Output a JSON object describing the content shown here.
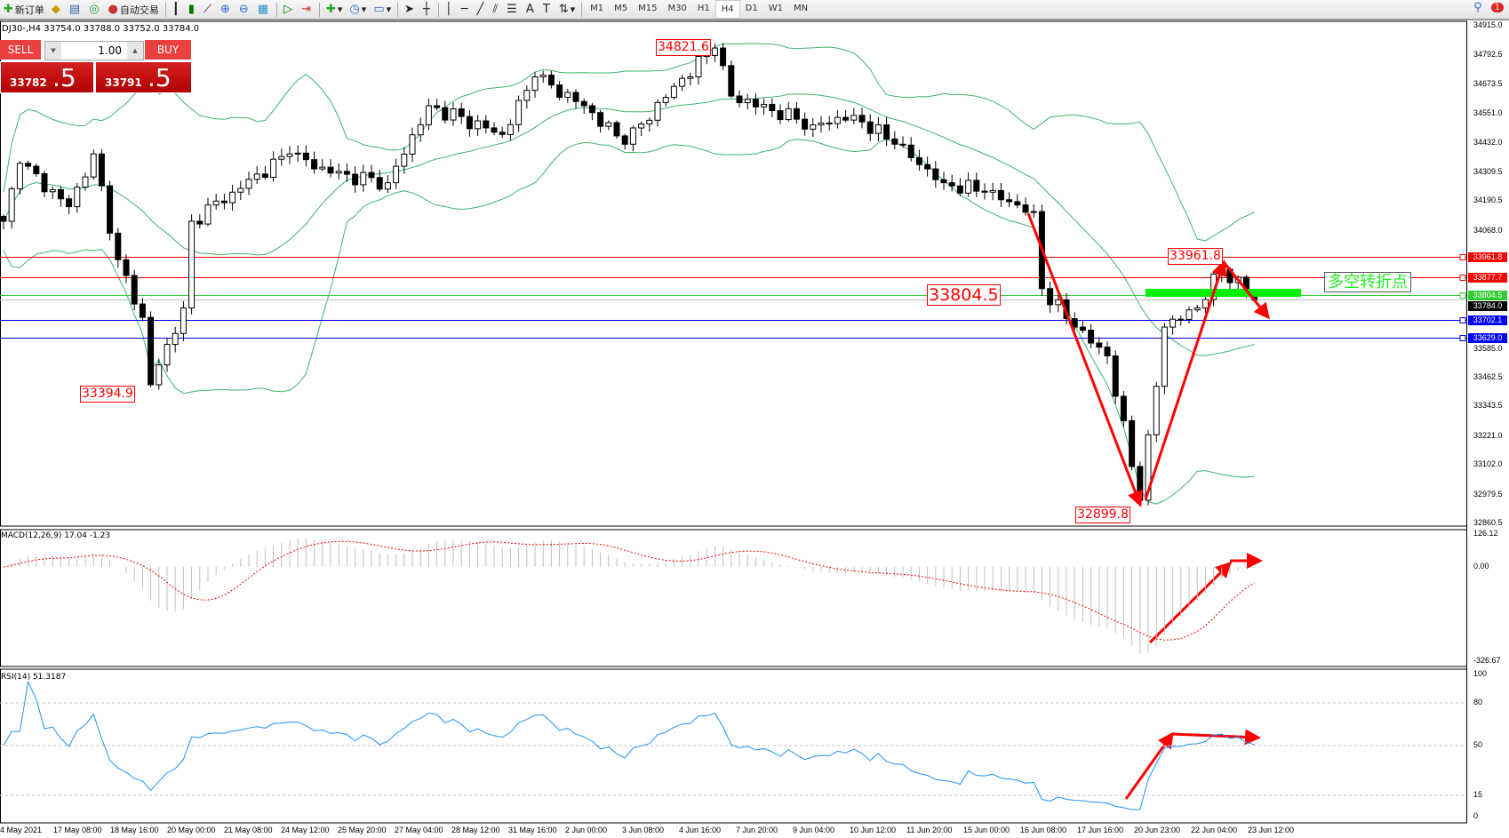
{
  "toolbar": {
    "items": [
      {
        "icon": "new-order-icon",
        "label": "新订单"
      },
      {
        "icon": "market-watch-icon",
        "label": ""
      },
      {
        "icon": "navigator-icon",
        "label": ""
      },
      {
        "icon": "signal-icon",
        "label": ""
      },
      {
        "icon": "auto-trading-icon",
        "label": "自动交易"
      }
    ],
    "timeframes": [
      "M1",
      "M5",
      "M15",
      "M30",
      "H1",
      "H4",
      "D1",
      "W1",
      "MN"
    ],
    "active_timeframe": "H4",
    "notification_count": "1"
  },
  "chart": {
    "title": "DJ30-,H4  33754.0 33788.0 33752.0 33784.0",
    "price_axis": [
      "34915.0",
      "34792.5",
      "34673.5",
      "34551.0",
      "34432.0",
      "34309.5",
      "34190.5",
      "34068.0",
      "33585.0",
      "33462.5",
      "33343.5",
      "33221.0",
      "33102.0",
      "32979.5",
      "32860.5"
    ],
    "price_range": [
      32860.5,
      34915.0
    ],
    "time_axis": [
      "4 May 2021",
      "17 May 08:00",
      "18 May 16:00",
      "20 May 00:00",
      "21 May 08:00",
      "24 May 12:00",
      "25 May 20:00",
      "27 May 04:00",
      "28 May 12:00",
      "31 May 16:00",
      "2 Jun 00:00",
      "3 Jun 08:00",
      "4 Jun 16:00",
      "7 Jun 20:00",
      "9 Jun 04:00",
      "10 Jun 12:00",
      "11 Jun 20:00",
      "15 Jun 00:00",
      "16 Jun 08:00",
      "17 Jun 16:00",
      "20 Jun 23:00",
      "22 Jun 04:00",
      "23 Jun 12:00"
    ],
    "price_path": [
      [
        0,
        34108
      ],
      [
        2,
        34347
      ],
      [
        8,
        34168
      ],
      [
        11,
        34386
      ],
      [
        14,
        33949
      ],
      [
        17,
        33711
      ],
      [
        18,
        33433
      ],
      [
        22,
        33750
      ],
      [
        23,
        34108
      ],
      [
        28,
        34228
      ],
      [
        35,
        34386
      ],
      [
        40,
        34307
      ],
      [
        47,
        34267
      ],
      [
        52,
        34585
      ],
      [
        61,
        34466
      ],
      [
        65,
        34704
      ],
      [
        71,
        34585
      ],
      [
        76,
        34426
      ],
      [
        82,
        34665
      ],
      [
        87,
        34823
      ],
      [
        89,
        34625
      ],
      [
        99,
        34506
      ],
      [
        104,
        34545
      ],
      [
        109,
        34426
      ],
      [
        115,
        34267
      ],
      [
        120,
        34228
      ],
      [
        126,
        34148
      ],
      [
        127,
        33830
      ],
      [
        131,
        33671
      ],
      [
        135,
        33552
      ],
      [
        139,
        32956
      ],
      [
        142,
        33671
      ],
      [
        146,
        33750
      ],
      [
        149,
        33910
      ],
      [
        153,
        33784
      ]
    ],
    "horizontal_lines": [
      {
        "price": "33961.8",
        "color": "#ff0000"
      },
      {
        "price": "33877.7",
        "color": "#ff0000"
      },
      {
        "price": "33804.5",
        "color": "#33cc33"
      },
      {
        "price": "33784.0",
        "color": "#000000"
      },
      {
        "price": "33702.1",
        "color": "#0000ff"
      },
      {
        "price": "33629.0",
        "color": "#0000ff"
      }
    ],
    "annotations": {
      "high_label": "34821.6",
      "low_label_1": "33394.9",
      "low_label_2": "32899.8",
      "recent_high": "33961.8",
      "pivot_label": "33804.5",
      "pivot_text": "多空转折点"
    },
    "colors": {
      "bands": "#3cb371",
      "arrow": "#ff0000",
      "pivot_bar": "#00ee00",
      "rsi": "#1e90ff",
      "macd_signal": "#ff0000",
      "macd_hist": "#c0c0c0"
    }
  },
  "trade_panel": {
    "sell_label": "SELL",
    "buy_label": "BUY",
    "lot": "1.00",
    "bid_main": "33782",
    "bid_frac": ".5",
    "ask_main": "33791",
    "ask_frac": ".5"
  },
  "macd": {
    "label": "MACD(12,26,9) 17.04 -1.23",
    "axis": [
      "126.12",
      "0.00",
      "-326.67"
    ]
  },
  "rsi": {
    "label": "RSI(14) 51.3187",
    "axis": [
      "100",
      "80",
      "50",
      "15",
      "0"
    ]
  }
}
